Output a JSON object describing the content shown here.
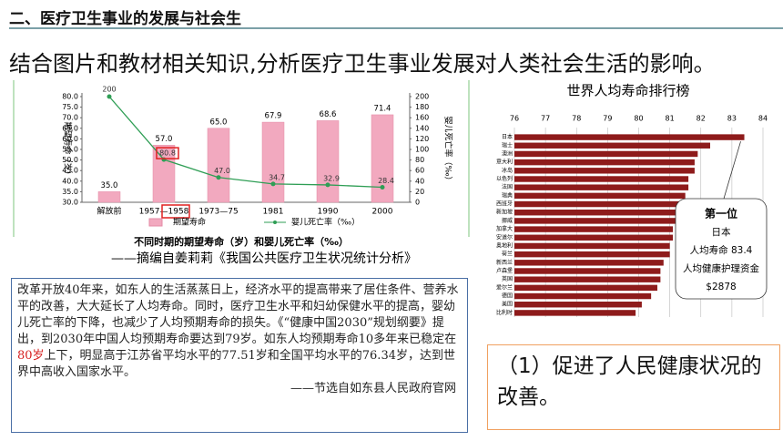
{
  "header": {
    "title": "二、医疗卫生事业的发展与社会生",
    "question": "结合图片和教材相关知识,分析医疗卫生事业发展对人类社会生活的影响。"
  },
  "chart_data": [
    {
      "type": "bar-line",
      "caption": "不同时期的期望寿命（岁）和婴儿死亡率（‰）",
      "source": "——摘编自姜莉莉《我国公共医疗卫生状况统计分析》",
      "ylabel": "期望寿命（岁）",
      "y2label": "婴儿死亡率（‰）",
      "categories": [
        "解放前",
        "1957—1958",
        "1973—75",
        "1981",
        "1990",
        "2000"
      ],
      "series": [
        {
          "name": "期望寿命",
          "color": "#f2a9bf",
          "values": [
            35.0,
            57.0,
            65.0,
            67.9,
            68.6,
            71.4
          ],
          "value_labels": [
            "35.0",
            "57.0",
            "65.0",
            "67.9",
            "68.6",
            "71.4"
          ]
        },
        {
          "name": "婴儿死亡率（‰）",
          "color": "#2f9e55",
          "axis": "y2",
          "values": [
            200,
            80.8,
            47.0,
            34.7,
            32.9,
            28.4
          ],
          "value_labels": [
            "200",
            "80.8",
            "47.0",
            "34.7",
            "32.9",
            "28.4"
          ]
        }
      ],
      "ylim": [
        30,
        80
      ],
      "yticks": [
        {
          "value": 30,
          "label": "30.0"
        },
        {
          "value": 35,
          "label": "35.0"
        },
        {
          "value": 40,
          "label": "40.0"
        },
        {
          "value": 45,
          "label": "45.0"
        },
        {
          "value": 50,
          "label": "50.0"
        },
        {
          "value": 55,
          "label": "55.0"
        },
        {
          "value": 60,
          "label": "60.0"
        },
        {
          "value": 65,
          "label": "65.0"
        },
        {
          "value": 70,
          "label": "70.0"
        },
        {
          "value": 75,
          "label": "75.0"
        },
        {
          "value": 80,
          "label": "80.0"
        }
      ],
      "y2lim": [
        0,
        200
      ],
      "y2ticks": [
        0,
        20,
        40,
        60,
        80,
        100,
        120,
        140,
        160,
        180,
        200
      ]
    },
    {
      "type": "hbar",
      "title": "世界人均寿命排行榜",
      "categories": [
        "日本",
        "瑞士",
        "澳洲",
        "意大利",
        "冰岛",
        "以色列",
        "法国",
        "瑞典",
        "西班牙",
        "新加坡",
        "挪威",
        "加拿大",
        "安道尔",
        "奥地利",
        "荷兰",
        "新西兰",
        "卢森堡",
        "英国",
        "爱尔兰",
        "德国",
        "美国",
        "比利时"
      ],
      "values": [
        83.4,
        82.3,
        81.9,
        81.8,
        81.8,
        81.6,
        81.6,
        81.5,
        81.5,
        81.5,
        81.2,
        81.1,
        81.1,
        81.0,
        81.0,
        80.8,
        80.7,
        80.7,
        80.6,
        80.4,
        80.1,
        79.9
      ],
      "color": "#8e1b1b",
      "xlim": [
        76,
        84
      ],
      "xticks": [
        76,
        77,
        78,
        79,
        80,
        81,
        82,
        83,
        84
      ],
      "grid": true,
      "annotation": [
        "第一位",
        "日本",
        "人均寿命 83.4",
        "人均健康护理资金",
        "$2878"
      ]
    }
  ],
  "passage": {
    "text_before": "改革开放40年来，如东人的生活蒸蒸日上，经济水平的提高带来了居住条件、营养水平的改善，大大延长了人均寿命。同时，医疗卫生水平和妇幼保健水平的提高，婴幼儿死亡率的下降，也减少了人均预期寿命的损失。《“健康中国2030”规划纲要》提出，到2030年中国人均预期寿命要达到79岁。如东人均预期寿命10多年来已稳定在",
    "highlight": "80岁",
    "text_after": "上下，明显高于江苏省平均水平的77.51岁和全国平均水平的76.34岁，达到世界中高收入国家水平。",
    "source": "——节选自如东县人民政府官网"
  },
  "answer": "（1）促进了人民健康状况的改善。"
}
